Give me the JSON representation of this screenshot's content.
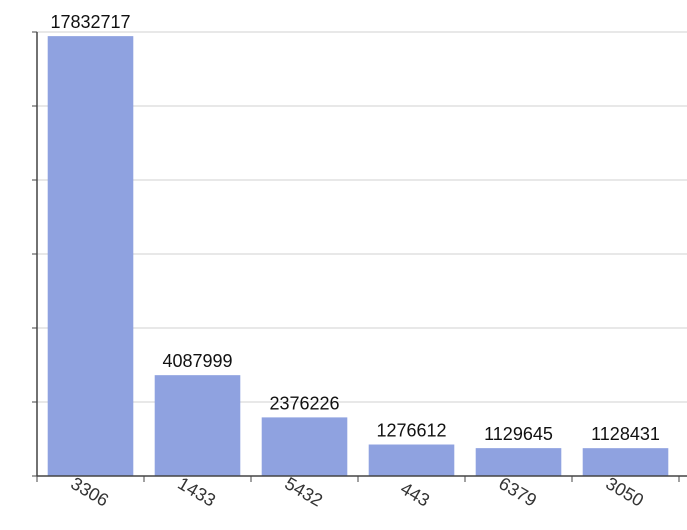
{
  "chart_data": {
    "type": "bar",
    "categories": [
      "3306",
      "1433",
      "5432",
      "443",
      "6379",
      "3050"
    ],
    "values": [
      17832717,
      4087999,
      2376226,
      1276612,
      1129645,
      1128431
    ],
    "color": "#8fa2e0",
    "ylim": [
      0,
      18000000
    ],
    "yticks": [
      0,
      3000000,
      6000000,
      9000000,
      12000000,
      15000000,
      18000000
    ],
    "grid": true
  }
}
